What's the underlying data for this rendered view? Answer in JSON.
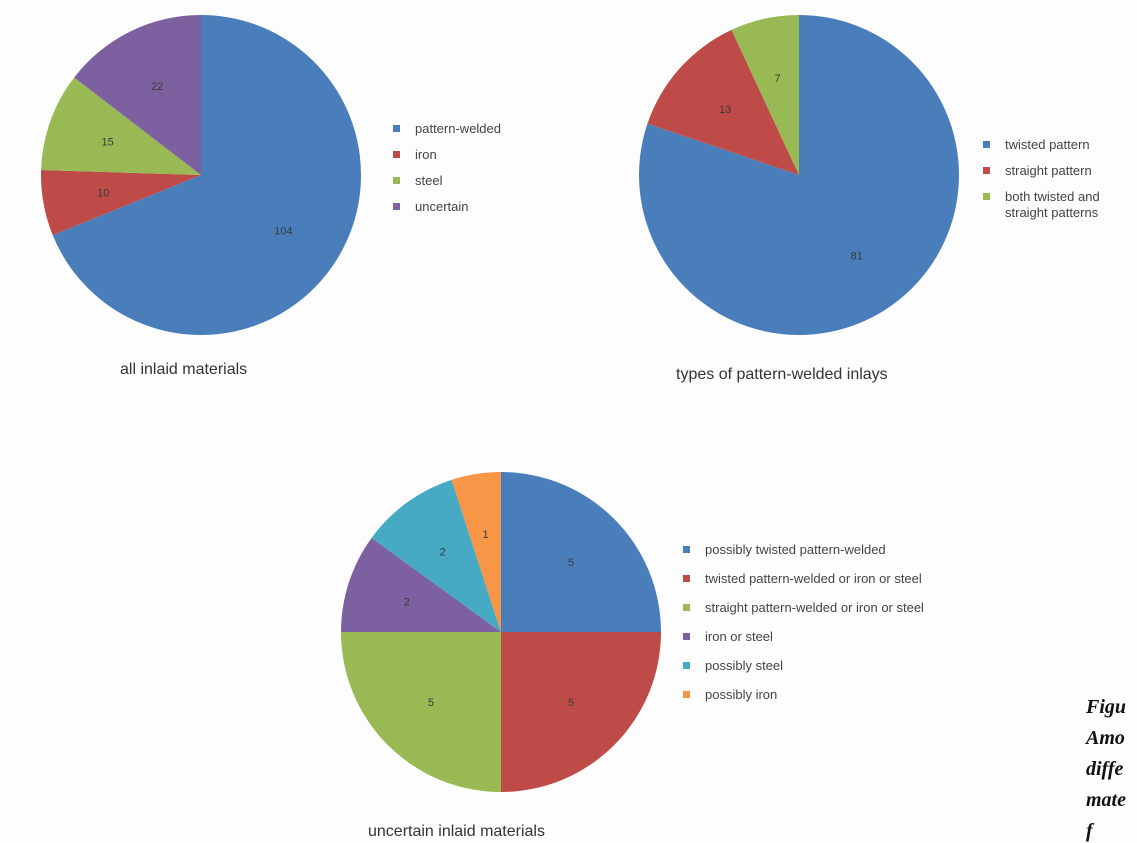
{
  "chart_data": [
    {
      "type": "pie",
      "title": "all inlaid materials",
      "categories": [
        "pattern-welded",
        "iron",
        "steel",
        "uncertain"
      ],
      "values": [
        104,
        10,
        15,
        22
      ],
      "colors": [
        "#4a7ebb",
        "#be4b48",
        "#98b954",
        "#7d60a0"
      ],
      "legend_position": "right"
    },
    {
      "type": "pie",
      "title": "types of pattern-welded inlays",
      "categories": [
        "twisted pattern",
        "straight pattern",
        "both twisted and straight patterns"
      ],
      "values": [
        81,
        13,
        7
      ],
      "colors": [
        "#4a7ebb",
        "#be4b48",
        "#98b954"
      ],
      "legend_position": "right"
    },
    {
      "type": "pie",
      "title": "uncertain inlaid materials",
      "categories": [
        "possibly twisted pattern-welded",
        "twisted pattern-welded or iron or steel",
        "straight pattern-welded or iron or steel",
        "iron or steel",
        "possibly steel",
        "possibly iron"
      ],
      "values": [
        5,
        5,
        5,
        2,
        2,
        1
      ],
      "colors": [
        "#4a7ebb",
        "#be4b48",
        "#98b954",
        "#7d60a0",
        "#46aac5",
        "#f79646"
      ],
      "legend_position": "right"
    }
  ],
  "figure_note": [
    "Figu",
    "Amo",
    "diffe",
    "mate",
    "f"
  ]
}
